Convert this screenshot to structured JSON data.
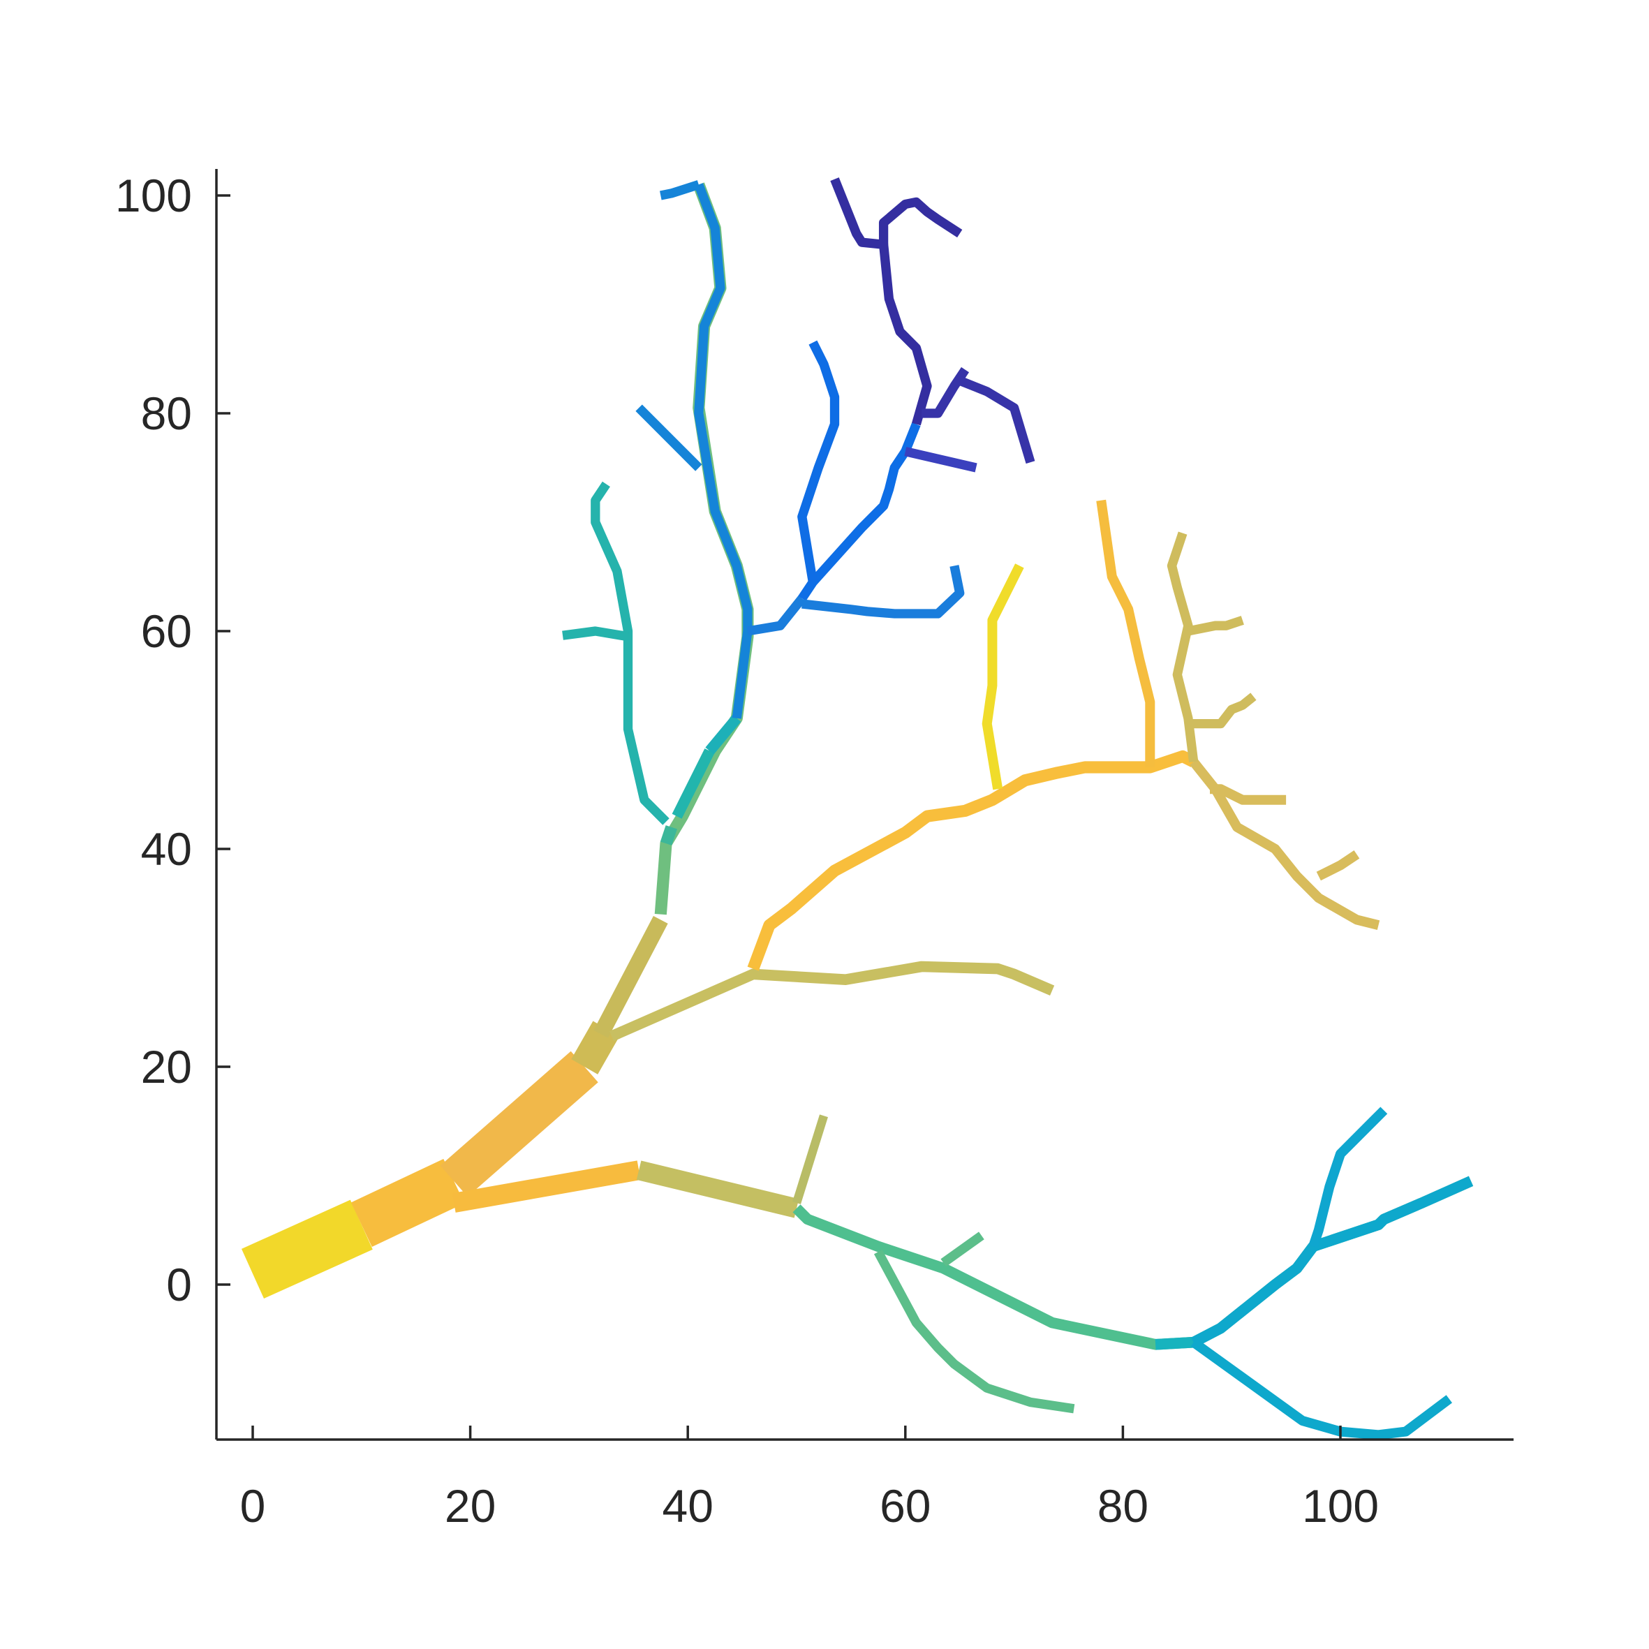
{
  "chart_data": {
    "type": "line",
    "title": "",
    "xlabel": "",
    "ylabel": "",
    "xlim": [
      -5,
      115
    ],
    "ylim": [
      -14,
      102
    ],
    "x_ticks": [
      0,
      20,
      40,
      60,
      80,
      100
    ],
    "y_ticks": [
      0,
      20,
      40,
      60,
      80,
      100
    ],
    "x_tick_labels": [
      "0",
      "20",
      "40",
      "60",
      "80",
      "100"
    ],
    "y_tick_labels": [
      "0",
      "20",
      "40",
      "60",
      "80",
      "100"
    ],
    "grid": false,
    "legend": "none",
    "description_of_colors": "parula colormap",
    "segments": [
      {
        "points": [
          [
            0,
            1
          ],
          [
            10,
            5.5
          ]
        ],
        "width": 5,
        "color": "#f2d82a"
      },
      {
        "points": [
          [
            10,
            5.5
          ],
          [
            18.5,
            9.5
          ]
        ],
        "width": 4.5,
        "color": "#f7bd3e"
      },
      {
        "points": [
          [
            18.5,
            9.5
          ],
          [
            30.5,
            20
          ]
        ],
        "width": 3.8,
        "color": "#f1b84a"
      },
      {
        "points": [
          [
            30.5,
            20
          ],
          [
            32.5,
            23.5
          ]
        ],
        "width": 2.8,
        "color": "#cfbb55"
      },
      {
        "points": [
          [
            32,
            23
          ],
          [
            37.5,
            33.5
          ]
        ],
        "width": 1.5,
        "color": "#c8ba5a"
      },
      {
        "points": [
          [
            37.5,
            34
          ],
          [
            38,
            40.5
          ],
          [
            39.5,
            43
          ],
          [
            42.5,
            49
          ],
          [
            44.5,
            52
          ],
          [
            45.5,
            59.5
          ],
          [
            45.5,
            62
          ],
          [
            44.5,
            66
          ],
          [
            42.5,
            71
          ],
          [
            41,
            80.5
          ],
          [
            41.5,
            88
          ],
          [
            43,
            91.5
          ],
          [
            42.5,
            97
          ],
          [
            41,
            101
          ]
        ],
        "width": 1.1,
        "color": "#6fbf7f"
      },
      {
        "points": [
          [
            38,
            40.5
          ],
          [
            38.5,
            42
          ]
        ],
        "width": 1.1,
        "color": "#3cb79a"
      },
      {
        "points": [
          [
            39,
            43
          ],
          [
            42,
            49
          ]
        ],
        "width": 1.0,
        "color": "#22b5ad"
      },
      {
        "points": [
          [
            42,
            49
          ],
          [
            44.5,
            52
          ]
        ],
        "width": 1.0,
        "color": "#1db0b8"
      },
      {
        "points": [
          [
            44.5,
            52
          ],
          [
            45.5,
            60
          ],
          [
            45.5,
            62
          ],
          [
            44.5,
            66
          ],
          [
            42.5,
            71
          ],
          [
            41,
            80
          ],
          [
            41.5,
            88
          ],
          [
            43,
            91.5
          ],
          [
            42.5,
            97
          ],
          [
            41,
            101
          ]
        ],
        "width": 0.85,
        "color": "#1584d8"
      },
      {
        "points": [
          [
            41,
            101
          ],
          [
            38.5,
            100.2
          ],
          [
            37.5,
            100
          ]
        ],
        "width": 0.85,
        "color": "#1584d8"
      },
      {
        "points": [
          [
            41,
            75
          ],
          [
            35.5,
            80.5
          ]
        ],
        "width": 0.85,
        "color": "#1584d8"
      },
      {
        "points": [
          [
            45.5,
            60
          ],
          [
            48.5,
            60.5
          ],
          [
            50.5,
            63
          ]
        ],
        "width": 0.85,
        "color": "#1a7ddc"
      },
      {
        "points": [
          [
            50.5,
            63
          ],
          [
            51.5,
            64.5
          ],
          [
            56,
            69.5
          ],
          [
            58,
            71.5
          ],
          [
            58.5,
            73
          ],
          [
            59,
            75
          ],
          [
            60,
            76.5
          ],
          [
            61,
            79
          ]
        ],
        "width": 0.85,
        "color": "#0e6ee6"
      },
      {
        "points": [
          [
            51.5,
            64.5
          ],
          [
            50.5,
            70.5
          ],
          [
            52,
            75
          ],
          [
            53.5,
            79
          ],
          [
            53.5,
            81.5
          ],
          [
            52.5,
            84.5
          ],
          [
            51.5,
            86.5
          ]
        ],
        "width": 0.85,
        "color": "#0f6de5"
      },
      {
        "points": [
          [
            50.5,
            62.5
          ],
          [
            55,
            62
          ],
          [
            56.5,
            61.8
          ],
          [
            59,
            61.6
          ],
          [
            63,
            61.6
          ],
          [
            65,
            63.5
          ],
          [
            64.5,
            66
          ]
        ],
        "width": 0.85,
        "color": "#1a7ddc"
      },
      {
        "points": [
          [
            60,
            76.5
          ],
          [
            66.5,
            75
          ]
        ],
        "width": 0.85,
        "color": "#3a40be"
      },
      {
        "points": [
          [
            61,
            79
          ],
          [
            62,
            82.5
          ],
          [
            61,
            86
          ],
          [
            59.5,
            87.5
          ],
          [
            58.5,
            90.5
          ],
          [
            58,
            95.5
          ],
          [
            56,
            95.7
          ],
          [
            55.5,
            96.5
          ],
          [
            54.5,
            99
          ],
          [
            53.5,
            101.5
          ]
        ],
        "width": 0.85,
        "color": "#342ea0"
      },
      {
        "points": [
          [
            58,
            95.5
          ],
          [
            58,
            97.5
          ],
          [
            60,
            99.2
          ],
          [
            61,
            99.4
          ],
          [
            62,
            98.5
          ],
          [
            63,
            97.8
          ],
          [
            65,
            96.5
          ]
        ],
        "width": 0.85,
        "color": "#342ea0"
      },
      {
        "points": [
          [
            61.5,
            80
          ],
          [
            63,
            80
          ],
          [
            64.5,
            82.5
          ],
          [
            65.5,
            84
          ]
        ],
        "width": 0.85,
        "color": "#3733a8"
      },
      {
        "points": [
          [
            65,
            83
          ],
          [
            67.5,
            82
          ],
          [
            70,
            80.5
          ],
          [
            71.5,
            75.5
          ]
        ],
        "width": 0.85,
        "color": "#3733a8"
      },
      {
        "points": [
          [
            38,
            42.5
          ],
          [
            36,
            44.5
          ],
          [
            34.5,
            51
          ],
          [
            34.5,
            60
          ],
          [
            33.5,
            65.5
          ],
          [
            31.5,
            70
          ],
          [
            31.5,
            72
          ],
          [
            32.5,
            73.5
          ]
        ],
        "width": 0.85,
        "color": "#25b3ac"
      },
      {
        "points": [
          [
            34.5,
            59.5
          ],
          [
            31.5,
            60
          ],
          [
            28.5,
            59.6
          ]
        ],
        "width": 0.85,
        "color": "#25b3ac"
      },
      {
        "points": [
          [
            33,
            22.8
          ],
          [
            46,
            28.5
          ],
          [
            54.5,
            28
          ],
          [
            61.5,
            29.2
          ],
          [
            68.5,
            29
          ],
          [
            70,
            28.5
          ],
          [
            73.5,
            27
          ]
        ],
        "width": 1.0,
        "color": "#c8bf61"
      },
      {
        "points": [
          [
            46,
            29
          ],
          [
            47.5,
            33
          ],
          [
            49.5,
            34.5
          ],
          [
            53.5,
            38
          ],
          [
            60,
            41.5
          ],
          [
            62,
            43
          ],
          [
            65.5,
            43.5
          ],
          [
            68,
            44.5
          ],
          [
            70,
            45.7
          ],
          [
            71,
            46.3
          ],
          [
            74,
            47
          ],
          [
            76.5,
            47.5
          ],
          [
            80,
            47.5
          ],
          [
            82.5,
            47.5
          ],
          [
            85.5,
            48.5
          ],
          [
            86.5,
            48
          ]
        ],
        "width": 1.1,
        "color": "#f8be3c"
      },
      {
        "points": [
          [
            68.5,
            45.5
          ],
          [
            67.5,
            51.5
          ],
          [
            68,
            55
          ],
          [
            68,
            61
          ],
          [
            70.5,
            66
          ]
        ],
        "width": 0.9,
        "color": "#f0dc2a"
      },
      {
        "points": [
          [
            82.5,
            47.5
          ],
          [
            82.5,
            53.5
          ],
          [
            81.5,
            57.5
          ],
          [
            80.5,
            62
          ],
          [
            79,
            65
          ],
          [
            78.5,
            68.5
          ],
          [
            78,
            72
          ]
        ],
        "width": 0.9,
        "color": "#f5bd3e"
      },
      {
        "points": [
          [
            86.5,
            48
          ],
          [
            88.5,
            45.5
          ],
          [
            90.5,
            42
          ],
          [
            94,
            40
          ],
          [
            96,
            37.5
          ],
          [
            98,
            35.5
          ],
          [
            101.5,
            33.5
          ],
          [
            103.5,
            33
          ]
        ],
        "width": 0.9,
        "color": "#d8bc5c"
      },
      {
        "points": [
          [
            88,
            45.5
          ],
          [
            89,
            45.5
          ],
          [
            91,
            44.5
          ],
          [
            95,
            44.5
          ]
        ],
        "width": 0.9,
        "color": "#d8bc5c"
      },
      {
        "points": [
          [
            98,
            37.5
          ],
          [
            100,
            38.5
          ],
          [
            101.5,
            39.5
          ]
        ],
        "width": 0.9,
        "color": "#d8bc5c"
      },
      {
        "points": [
          [
            86.5,
            48
          ],
          [
            86,
            52
          ],
          [
            85,
            56
          ],
          [
            86,
            60.5
          ],
          [
            85,
            64
          ],
          [
            84.5,
            66
          ],
          [
            85,
            67.5
          ],
          [
            85.5,
            69
          ]
        ],
        "width": 0.85,
        "color": "#cfbc5d"
      },
      {
        "points": [
          [
            86,
            51.5
          ],
          [
            89,
            51.5
          ],
          [
            90,
            52.8
          ],
          [
            91,
            53.2
          ],
          [
            92,
            54
          ]
        ],
        "width": 0.85,
        "color": "#cfbc5d"
      },
      {
        "points": [
          [
            86,
            60
          ],
          [
            88.5,
            60.5
          ],
          [
            89.5,
            60.5
          ],
          [
            91,
            61
          ]
        ],
        "width": 0.85,
        "color": "#cfbc5d"
      },
      {
        "points": [
          [
            18.5,
            7.5
          ],
          [
            35.5,
            10.5
          ]
        ],
        "width": 1.8,
        "color": "#f7bb3e"
      },
      {
        "points": [
          [
            35.5,
            10.5
          ],
          [
            50,
            7
          ]
        ],
        "width": 1.8,
        "color": "#c4bf62"
      },
      {
        "points": [
          [
            50,
            7.5
          ],
          [
            52.5,
            15.5
          ]
        ],
        "width": 0.8,
        "color": "#b8bc66"
      },
      {
        "points": [
          [
            50,
            7
          ],
          [
            51,
            6
          ],
          [
            57.5,
            3.5
          ],
          [
            63.5,
            1.5
          ],
          [
            73.5,
            -3.5
          ],
          [
            83,
            -5.5
          ],
          [
            86.5,
            -5.3
          ],
          [
            89,
            -4
          ],
          [
            94,
            0
          ],
          [
            96,
            1.5
          ],
          [
            97.5,
            3.5
          ],
          [
            103.5,
            5.5
          ],
          [
            104,
            6
          ],
          [
            107.5,
            7.5
          ],
          [
            112,
            9.5
          ]
        ],
        "width": 1.0,
        "color": "#4fbf8f"
      },
      {
        "points": [
          [
            83,
            -5.5
          ],
          [
            86.5,
            -5.3
          ]
        ],
        "width": 1.0,
        "color": "#17b3be"
      },
      {
        "points": [
          [
            86.5,
            -5.3
          ],
          [
            89,
            -4
          ],
          [
            94,
            0
          ],
          [
            96,
            1.5
          ],
          [
            97.5,
            3.5
          ],
          [
            103.5,
            5.5
          ],
          [
            104,
            6
          ],
          [
            107.5,
            7.5
          ],
          [
            112,
            9.5
          ]
        ],
        "width": 1.0,
        "color": "#0ea8cc"
      },
      {
        "points": [
          [
            97.5,
            3.5
          ],
          [
            98,
            5
          ],
          [
            99,
            9
          ],
          [
            100,
            12
          ],
          [
            103,
            15
          ],
          [
            104,
            16
          ]
        ],
        "width": 0.9,
        "color": "#0fa6cf"
      },
      {
        "points": [
          [
            86.5,
            -5.3
          ],
          [
            96.5,
            -12.5
          ],
          [
            100,
            -13.5
          ],
          [
            103.5,
            -13.8
          ],
          [
            106,
            -13.5
          ],
          [
            110,
            -10.5
          ]
        ],
        "width": 0.9,
        "color": "#0ea8cc"
      },
      {
        "points": [
          [
            57.5,
            3
          ],
          [
            61,
            -3.5
          ],
          [
            63,
            -5.8
          ],
          [
            64.5,
            -7.3
          ],
          [
            67.5,
            -9.5
          ],
          [
            71.5,
            -10.8
          ],
          [
            75.5,
            -11.4
          ]
        ],
        "width": 0.85,
        "color": "#5cbe8a"
      },
      {
        "points": [
          [
            63.5,
            2
          ],
          [
            67,
            4.5
          ]
        ],
        "width": 0.85,
        "color": "#5cbe8a"
      }
    ]
  }
}
